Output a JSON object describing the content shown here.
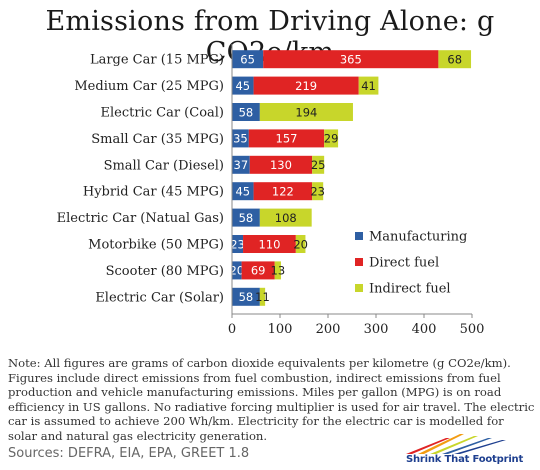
{
  "title": "Emissions from Driving Alone: g CO2e/km",
  "chart_data": {
    "type": "bar",
    "orientation": "horizontal",
    "stacked": true,
    "title": "Emissions from Driving Alone: g CO2e/km",
    "categories": [
      "Large Car (15 MPG)",
      "Medium Car (25 MPG)",
      "Electric Car (Coal)",
      "Small Car (35 MPG)",
      "Small Car (Diesel)",
      "Hybrid Car (45 MPG)",
      "Electric Car (Natual Gas)",
      "Motorbike (50 MPG)",
      "Scooter (80 MPG)",
      "Electric Car (Solar)"
    ],
    "series": [
      {
        "name": "Manufacturing",
        "color": "#2e5fa3",
        "values": [
          65,
          45,
          58,
          35,
          37,
          45,
          58,
          23,
          20,
          58
        ]
      },
      {
        "name": "Direct fuel",
        "color": "#e02424",
        "values": [
          365,
          219,
          0,
          157,
          130,
          122,
          0,
          110,
          69,
          0
        ]
      },
      {
        "name": "Indirect fuel",
        "color": "#c8d62b",
        "values": [
          68,
          41,
          194,
          29,
          25,
          23,
          108,
          20,
          13,
          11
        ]
      }
    ],
    "xlim": [
      0,
      500
    ],
    "xticks": [
      0,
      100,
      200,
      300,
      400,
      500
    ],
    "grid": false,
    "legend_position": "bottom-right"
  },
  "note": "Note:  All figures are grams of carbon dioxide equivalents per kilometre (g CO2e/km). Figures include direct emissions from fuel combustion, indirect emissions from fuel production and vehicle manufacturing emissions.  Miles per gallon (MPG) is on road efficiency in US gallons.  No radiative forcing multiplier is used for air travel.  The electric car is assumed to achieve 200 Wh/km.  Electricity for the electric car is modelled for solar and natural gas electricity generation.",
  "sources": "Sources:  DEFRA, EIA, EPA, GREET 1.8",
  "logo": {
    "text": "Shrink That Footprint"
  }
}
